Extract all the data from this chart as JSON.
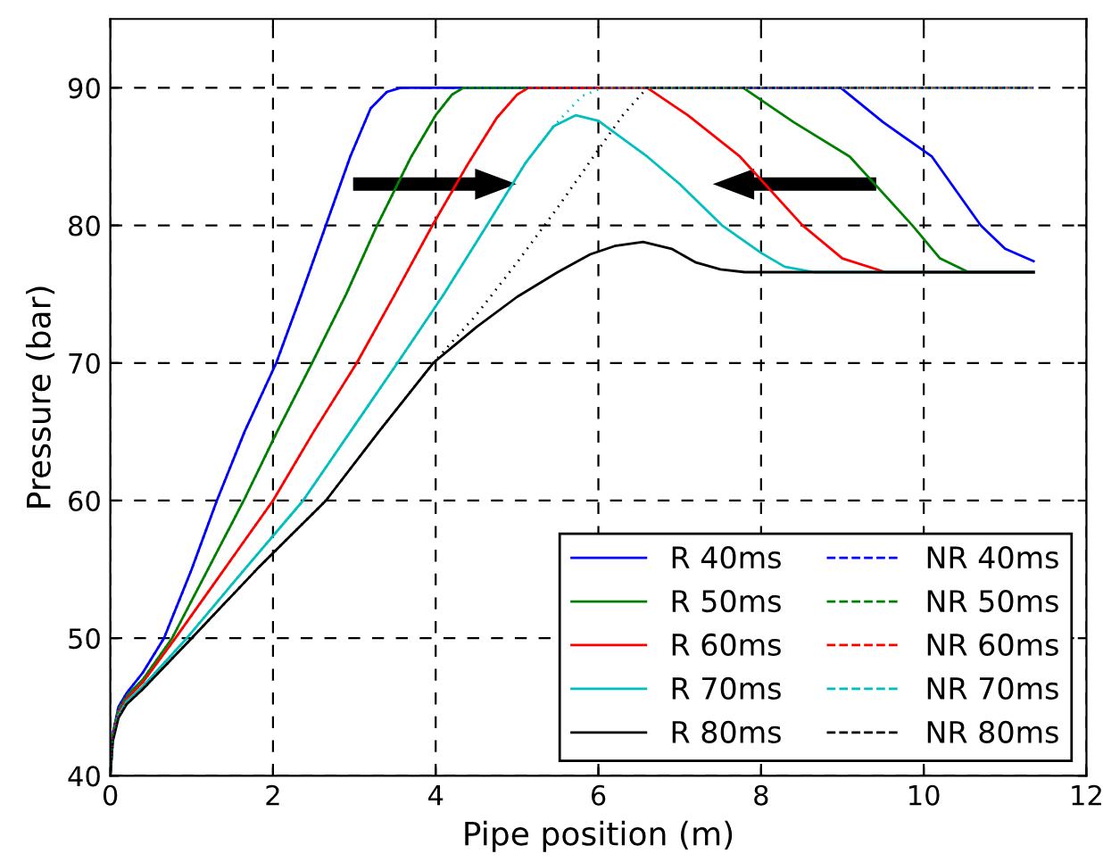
{
  "chart_data": {
    "type": "line",
    "xlabel": "Pipe position (m)",
    "ylabel": "Pressure (bar)",
    "xlim": [
      0,
      12
    ],
    "ylim": [
      40,
      95
    ],
    "xticks": [
      0,
      2,
      4,
      6,
      8,
      10,
      12
    ],
    "yticks": [
      40,
      50,
      60,
      70,
      80,
      90
    ],
    "grid": true,
    "legend": "bottom right",
    "series": [
      {
        "name": "R 40ms",
        "color": "#0000ff",
        "line_style": "solid",
        "x": [
          0,
          0.03,
          0.1,
          0.2,
          0.4,
          0.66,
          1.0,
          1.31,
          1.65,
          2.04,
          2.35,
          2.65,
          2.95,
          3.2,
          3.4,
          3.57,
          8.98,
          9.5,
          10.1,
          10.7,
          11.0,
          11.35
        ],
        "values": [
          40,
          43,
          45,
          46,
          47.5,
          50,
          55,
          60,
          65,
          70,
          75,
          80,
          85,
          88.5,
          89.7,
          90,
          90,
          87.5,
          85,
          80,
          78.3,
          77.4
        ]
      },
      {
        "name": "R 50ms",
        "color": "#008000",
        "line_style": "solid",
        "x": [
          0,
          0.03,
          0.1,
          0.2,
          0.4,
          0.76,
          1.2,
          1.64,
          2.05,
          2.48,
          2.9,
          3.28,
          3.7,
          4.0,
          4.2,
          4.34,
          7.78,
          8.4,
          9.09,
          9.86,
          10.2,
          10.55,
          11.35
        ],
        "values": [
          40,
          43,
          44.8,
          45.8,
          47,
          50,
          55,
          60,
          65,
          70,
          75,
          80,
          85,
          88,
          89.5,
          90,
          90,
          87.5,
          85,
          80,
          77.6,
          76.6,
          76.6
        ]
      },
      {
        "name": "R 60ms",
        "color": "#ff0000",
        "line_style": "solid",
        "x": [
          0,
          0.03,
          0.1,
          0.2,
          0.4,
          0.8,
          1.4,
          2.0,
          2.5,
          3.03,
          3.5,
          3.96,
          4.4,
          4.75,
          5.0,
          5.14,
          6.6,
          7.1,
          7.74,
          8.51,
          9.0,
          9.53,
          11.35
        ],
        "values": [
          40,
          42.8,
          44.6,
          45.6,
          46.8,
          50,
          55,
          60,
          65,
          70,
          75,
          80,
          84.5,
          87.8,
          89.5,
          90,
          90,
          88,
          85,
          80,
          77.6,
          76.6,
          76.6
        ]
      },
      {
        "name": "R 70ms",
        "color": "#00bfbf",
        "line_style": "solid",
        "x": [
          0,
          0.03,
          0.1,
          0.2,
          0.4,
          0.94,
          1.65,
          2.37,
          2.95,
          3.53,
          4.1,
          4.63,
          5.1,
          5.45,
          5.72,
          6.0,
          6.6,
          7.0,
          7.52,
          8.0,
          8.29,
          8.65,
          11.35
        ],
        "values": [
          40,
          42.6,
          44.4,
          45.4,
          46.5,
          50,
          55,
          60,
          65,
          70,
          75,
          80,
          84.5,
          87.2,
          88,
          87.6,
          85,
          83,
          80,
          78,
          77,
          76.6,
          76.6
        ]
      },
      {
        "name": "R 80ms",
        "color": "#000000",
        "line_style": "solid",
        "x": [
          0,
          0.03,
          0.1,
          0.2,
          0.4,
          1.0,
          1.8,
          2.65,
          3.3,
          3.97,
          4.5,
          5.0,
          5.5,
          5.9,
          6.2,
          6.55,
          6.9,
          7.2,
          7.5,
          7.8,
          11.35
        ],
        "values": [
          40,
          42.5,
          44.2,
          45.2,
          46.3,
          50,
          55,
          60,
          65,
          70,
          72.6,
          74.8,
          76.6,
          77.9,
          78.5,
          78.8,
          78.3,
          77.3,
          76.8,
          76.6,
          76.6
        ]
      },
      {
        "name": "NR 40ms",
        "color": "#0000ff",
        "line_style": "dashed",
        "x": [
          0,
          0.03,
          0.1,
          0.2,
          0.4,
          0.66,
          1.0,
          1.31,
          1.65,
          2.04,
          2.35,
          2.65,
          2.95,
          3.2,
          3.4,
          3.57,
          11.35
        ],
        "values": [
          40,
          43,
          45,
          46,
          47.5,
          50,
          55,
          60,
          65,
          70,
          75,
          80,
          85,
          88.5,
          89.7,
          90,
          90
        ]
      },
      {
        "name": "NR 50ms",
        "color": "#008000",
        "line_style": "dashed",
        "x": [
          0,
          0.03,
          0.1,
          0.2,
          0.4,
          0.76,
          1.2,
          1.64,
          2.05,
          2.48,
          2.9,
          3.28,
          3.7,
          4.0,
          4.2,
          4.34,
          11.35
        ],
        "values": [
          40,
          43,
          44.8,
          45.8,
          47,
          50,
          55,
          60,
          65,
          70,
          75,
          80,
          85,
          88,
          89.5,
          90,
          90
        ]
      },
      {
        "name": "NR 60ms",
        "color": "#ff0000",
        "line_style": "dashed",
        "x": [
          0,
          0.03,
          0.1,
          0.2,
          0.4,
          0.8,
          1.4,
          2.0,
          2.5,
          3.03,
          3.5,
          3.96,
          4.4,
          4.75,
          5.0,
          5.14,
          11.35
        ],
        "values": [
          40,
          42.8,
          44.6,
          45.6,
          46.8,
          50,
          55,
          60,
          65,
          70,
          75,
          80,
          84.5,
          87.8,
          89.5,
          90,
          90
        ]
      },
      {
        "name": "NR 70ms",
        "color": "#00bfbf",
        "line_style": "dashed",
        "x": [
          0,
          0.03,
          0.1,
          0.2,
          0.4,
          0.94,
          1.65,
          2.37,
          2.95,
          3.53,
          4.1,
          4.63,
          5.1,
          5.45,
          5.8,
          6.05,
          11.35
        ],
        "values": [
          40,
          42.6,
          44.4,
          45.4,
          46.5,
          50,
          55,
          60,
          65,
          70,
          75,
          80,
          84.5,
          87.2,
          89.4,
          90,
          90
        ]
      },
      {
        "name": "NR 80ms",
        "color": "#000000",
        "line_style": "dashed",
        "x": [
          0,
          0.03,
          0.1,
          0.2,
          0.4,
          1.0,
          1.8,
          2.65,
          3.3,
          3.97,
          4.5,
          5.0,
          5.5,
          6.0,
          6.3,
          6.6,
          11.35
        ],
        "values": [
          40,
          42.5,
          44.2,
          45.2,
          46.3,
          50,
          55,
          60,
          65,
          70,
          73.5,
          77.3,
          81.3,
          85.5,
          88,
          90,
          90
        ]
      }
    ]
  }
}
